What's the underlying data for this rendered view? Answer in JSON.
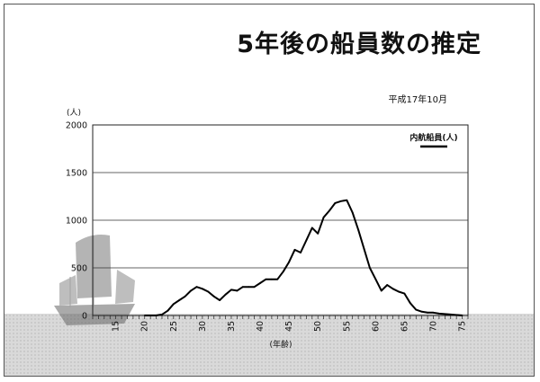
{
  "slide": {
    "title": "5年後の船員数の推定",
    "date": "平成17年10月"
  },
  "chart_data": {
    "type": "line",
    "title": "5年後の船員数の推定",
    "xlabel": "(年齢)",
    "ylabel": "(人)",
    "ylim": [
      0,
      2000
    ],
    "xlim": [
      11,
      76
    ],
    "yticks": [
      0,
      500,
      1000,
      1500,
      2000
    ],
    "xticks": [
      15,
      20,
      25,
      30,
      35,
      40,
      45,
      50,
      55,
      60,
      65,
      70,
      75
    ],
    "grid": true,
    "legend_position": "top-right",
    "series": [
      {
        "name": "内航船員(人)",
        "color": "#000000",
        "x": [
          20,
          21,
          22,
          23,
          24,
          25,
          26,
          27,
          28,
          29,
          30,
          31,
          32,
          33,
          34,
          35,
          36,
          37,
          38,
          39,
          40,
          41,
          42,
          43,
          44,
          45,
          46,
          47,
          48,
          49,
          50,
          51,
          52,
          53,
          54,
          55,
          56,
          57,
          58,
          59,
          60,
          61,
          62,
          63,
          64,
          65,
          66,
          67,
          68,
          69,
          70,
          71,
          72,
          73,
          74,
          75
        ],
        "values": [
          0,
          0,
          0,
          10,
          50,
          120,
          160,
          200,
          260,
          300,
          280,
          250,
          200,
          160,
          220,
          270,
          260,
          300,
          300,
          300,
          340,
          380,
          380,
          380,
          460,
          560,
          690,
          660,
          790,
          920,
          860,
          1030,
          1100,
          1180,
          1200,
          1210,
          1080,
          900,
          700,
          500,
          380,
          260,
          320,
          280,
          250,
          230,
          130,
          60,
          40,
          30,
          30,
          20,
          15,
          10,
          5,
          0
        ]
      }
    ]
  }
}
